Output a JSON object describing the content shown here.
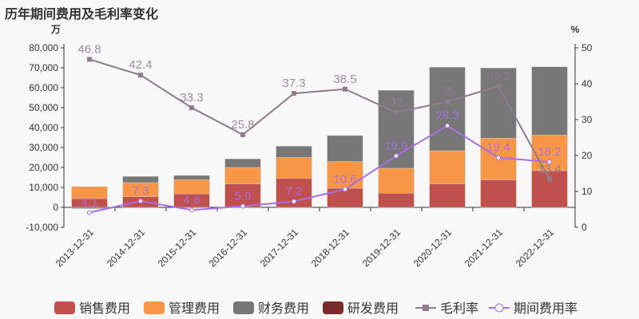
{
  "chart_data": {
    "type": "bar",
    "title": "历年期间费用及毛利率变化",
    "ylabel_left": "万",
    "ylabel_right": "%",
    "ylim_left": [
      -10000,
      80000
    ],
    "ylim_right": [
      0,
      50
    ],
    "yticks_left": [
      "-10,000",
      "0",
      "10,000",
      "20,000",
      "30,000",
      "40,000",
      "50,000",
      "60,000",
      "70,000",
      "80,000"
    ],
    "yticks_right": [
      "0",
      "10",
      "20",
      "30",
      "40",
      "50"
    ],
    "categories": [
      "2013-12-31",
      "2014-12-31",
      "2015-12-31",
      "2016-12-31",
      "2017-12-31",
      "2018-12-31",
      "2019-12-31",
      "2020-12-31",
      "2021-12-31",
      "2022-12-31"
    ],
    "series": [
      {
        "name": "销售费用",
        "type": "bar",
        "color": "#c0504d",
        "values": [
          4400,
          5300,
          6700,
          11700,
          14500,
          9600,
          7100,
          11700,
          13700,
          18400
        ]
      },
      {
        "name": "管理费用",
        "type": "bar",
        "color": "#f79646",
        "values": [
          6000,
          7100,
          7200,
          8300,
          10600,
          13400,
          12500,
          16700,
          21000,
          17900
        ]
      },
      {
        "name": "财务费用",
        "type": "bar",
        "color": "#777777",
        "values": [
          -600,
          3100,
          2100,
          4300,
          5600,
          13000,
          39100,
          41900,
          35200,
          34200
        ]
      },
      {
        "name": "研发费用",
        "type": "bar",
        "color": "#7b2a2a",
        "values": [
          0,
          0,
          0,
          0,
          0,
          0,
          0,
          0,
          0,
          0
        ]
      },
      {
        "name": "毛利率",
        "type": "line",
        "axis": "right",
        "color": "#8e7b8e",
        "values": [
          46.8,
          42.4,
          33.3,
          25.8,
          37.3,
          38.5,
          32,
          35,
          39.3,
          13.4
        ],
        "labels": [
          "46.8",
          "42.4",
          "33.3",
          "25.8",
          "37.3",
          "38.5",
          "32",
          "35",
          "39.3",
          "13.4"
        ]
      },
      {
        "name": "期间费用率",
        "type": "line",
        "axis": "right",
        "color": "#a86ee8",
        "values": [
          4.1,
          7.3,
          4.8,
          5.9,
          7.2,
          10.6,
          19.9,
          28.3,
          19.4,
          18.2
        ],
        "labels": [
          "4.1",
          "7.3",
          "4.8",
          "5.9",
          "7.2",
          "10.6",
          "19.9",
          "28.3",
          "19.4",
          "18.2"
        ]
      }
    ],
    "legend_position": "bottom"
  }
}
